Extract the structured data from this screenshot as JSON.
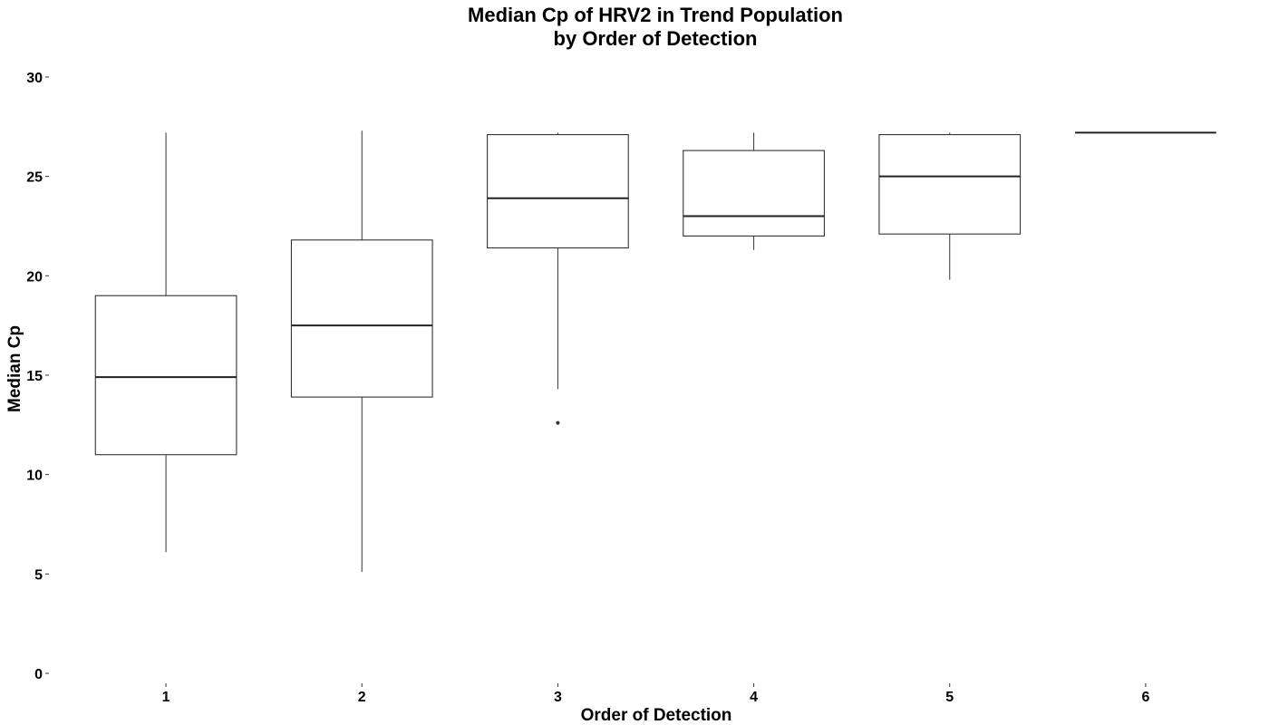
{
  "chart_data": {
    "type": "boxplot",
    "title": [
      "Median Cp of HRV2 in Trend Population",
      "by Order of Detection"
    ],
    "xlabel": "Order of Detection",
    "ylabel": "Median Cp",
    "ylim": [
      -0.5,
      31
    ],
    "y_ticks": [
      0,
      5,
      10,
      15,
      20,
      25,
      30
    ],
    "grid": false,
    "legend": "none",
    "categories": [
      "1",
      "2",
      "3",
      "4",
      "5",
      "6"
    ],
    "boxes": [
      {
        "category": "1",
        "whisker_low": 6.1,
        "q1": 11.0,
        "median": 14.9,
        "q3": 19.0,
        "whisker_high": 27.2,
        "outliers": []
      },
      {
        "category": "2",
        "whisker_low": 5.1,
        "q1": 13.9,
        "median": 17.5,
        "q3": 21.8,
        "whisker_high": 27.3,
        "outliers": []
      },
      {
        "category": "3",
        "whisker_low": 14.3,
        "q1": 21.4,
        "median": 23.9,
        "q3": 27.1,
        "whisker_high": 27.2,
        "outliers": [
          12.6
        ]
      },
      {
        "category": "4",
        "whisker_low": 21.3,
        "q1": 22.0,
        "median": 23.0,
        "q3": 26.3,
        "whisker_high": 27.2,
        "outliers": []
      },
      {
        "category": "5",
        "whisker_low": 19.8,
        "q1": 22.1,
        "median": 25.0,
        "q3": 27.1,
        "whisker_high": 27.2,
        "outliers": []
      },
      {
        "category": "6",
        "whisker_low": 27.2,
        "q1": 27.2,
        "median": 27.2,
        "q3": 27.2,
        "whisker_high": 27.2,
        "outliers": []
      }
    ],
    "colors": {
      "box_fill": "#ffffff",
      "box_stroke": "#333333",
      "median": "#222222",
      "text": "#000000"
    }
  }
}
